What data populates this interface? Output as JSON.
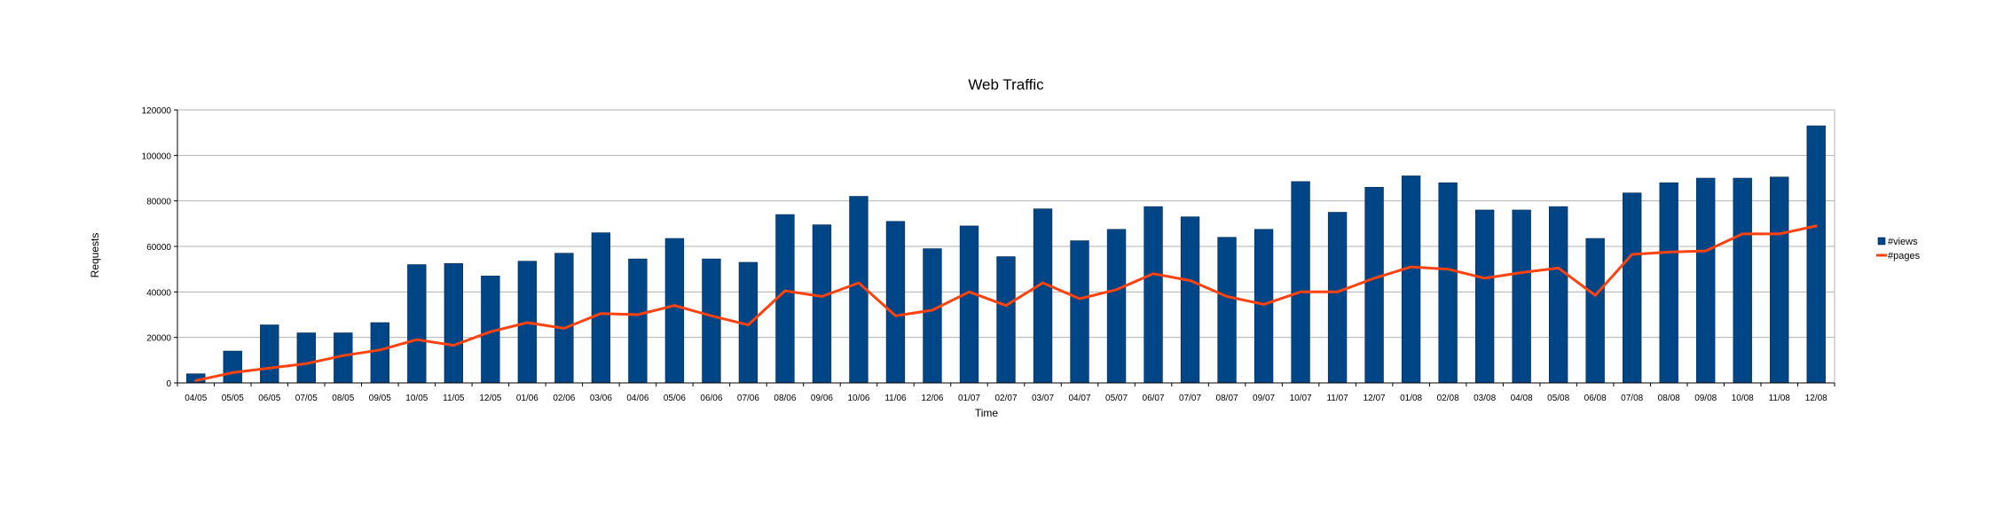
{
  "chart_data": {
    "type": "bar",
    "title": "Web Traffic",
    "xlabel": "Time",
    "ylabel": "Requests",
    "ylim": [
      0,
      120000
    ],
    "yticks": [
      0,
      20000,
      40000,
      60000,
      80000,
      100000,
      120000
    ],
    "grid": true,
    "legend_position": "right",
    "categories": [
      "04/05",
      "05/05",
      "06/05",
      "07/05",
      "08/05",
      "09/05",
      "10/05",
      "11/05",
      "12/05",
      "01/06",
      "02/06",
      "03/06",
      "04/06",
      "05/06",
      "06/06",
      "07/06",
      "08/06",
      "09/06",
      "10/06",
      "11/06",
      "12/06",
      "01/07",
      "02/07",
      "03/07",
      "04/07",
      "05/07",
      "06/07",
      "07/07",
      "08/07",
      "09/07",
      "10/07",
      "11/07",
      "12/07",
      "01/08",
      "02/08",
      "03/08",
      "04/08",
      "05/08",
      "06/08",
      "07/08",
      "08/08",
      "09/08",
      "10/08",
      "11/08",
      "12/08"
    ],
    "series": [
      {
        "name": "#views",
        "type": "bar",
        "color": "#004586",
        "values": [
          4000,
          14000,
          25500,
          22000,
          22000,
          26500,
          52000,
          52500,
          47000,
          53500,
          57000,
          66000,
          54500,
          63500,
          54500,
          53000,
          74000,
          69500,
          82000,
          71000,
          59000,
          69000,
          55500,
          76500,
          62500,
          67500,
          77500,
          73000,
          64000,
          67500,
          88500,
          75000,
          86000,
          91000,
          88000,
          76000,
          76000,
          77500,
          63500,
          83500,
          88000,
          90000,
          90000,
          90500,
          113000
        ]
      },
      {
        "name": "#pages",
        "type": "line",
        "color": "#ff420e",
        "values": [
          1000,
          4500,
          6500,
          8500,
          12000,
          14500,
          19000,
          16500,
          22500,
          26500,
          24000,
          30500,
          30000,
          34000,
          29500,
          25500,
          40500,
          38000,
          44000,
          29500,
          32000,
          40000,
          34000,
          44000,
          37000,
          41000,
          48000,
          45000,
          38000,
          34500,
          40000,
          40000,
          46000,
          51000,
          50000,
          46000,
          48500,
          50500,
          38500,
          56500,
          57500,
          58000,
          65500,
          65500,
          69000
        ]
      }
    ]
  }
}
